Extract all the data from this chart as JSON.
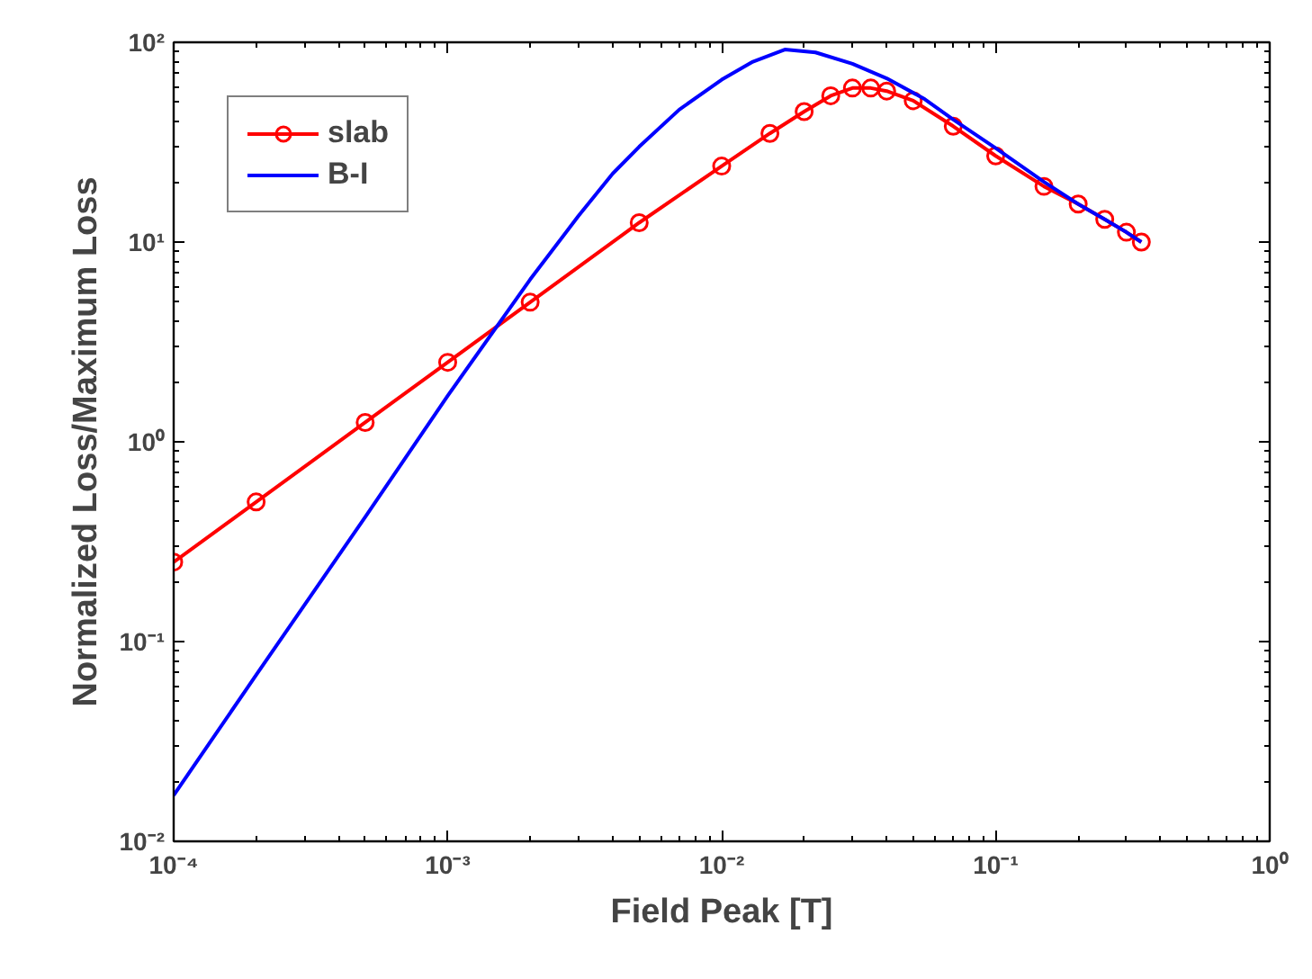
{
  "chart_data": {
    "type": "line",
    "xlabel": "Field Peak [T]",
    "ylabel": "Normalized Loss/Maximum Loss",
    "log": "xy",
    "grid": false,
    "legend": "top left",
    "xlim": [
      0.0001,
      1
    ],
    "ylim": [
      0.01,
      100
    ],
    "xticks": [
      {
        "value": 0.0001,
        "label": "10⁻⁴"
      },
      {
        "value": 0.001,
        "label": "10⁻³"
      },
      {
        "value": 0.01,
        "label": "10⁻²"
      },
      {
        "value": 0.1,
        "label": "10⁻¹"
      },
      {
        "value": 1,
        "label": "10⁰"
      }
    ],
    "yticks": [
      {
        "value": 0.01,
        "label": "10⁻²"
      },
      {
        "value": 0.1,
        "label": "10⁻¹"
      },
      {
        "value": 1,
        "label": "10⁰"
      },
      {
        "value": 10,
        "label": "10¹"
      },
      {
        "value": 100,
        "label": "10²"
      }
    ],
    "series": [
      {
        "name": "slab",
        "color": "#ff0000",
        "marker": "circle",
        "x": [
          0.0001,
          0.0002,
          0.0005,
          0.001,
          0.002,
          0.005,
          0.01,
          0.015,
          0.02,
          0.025,
          0.03,
          0.035,
          0.04,
          0.05,
          0.07,
          0.1,
          0.15,
          0.2,
          0.25,
          0.3,
          0.34
        ],
        "values": [
          0.25,
          0.5,
          1.25,
          2.5,
          5,
          12.5,
          24,
          35,
          45,
          54,
          59,
          59,
          57,
          51,
          38,
          27,
          19,
          15.5,
          13,
          11.2,
          10
        ]
      },
      {
        "name": "B-I",
        "color": "#0000ff",
        "marker": "none",
        "x": [
          0.0001,
          0.0002,
          0.0005,
          0.001,
          0.002,
          0.003,
          0.004,
          0.005,
          0.007,
          0.01,
          0.013,
          0.017,
          0.022,
          0.03,
          0.04,
          0.055,
          0.07,
          0.1,
          0.15,
          0.2,
          0.25,
          0.3,
          0.34
        ],
        "values": [
          0.017,
          0.068,
          0.42,
          1.7,
          6.5,
          13.5,
          22,
          30,
          46,
          65,
          80,
          92,
          89,
          78,
          66,
          52,
          41,
          29.5,
          20,
          15.5,
          13,
          11.2,
          10
        ]
      }
    ]
  }
}
